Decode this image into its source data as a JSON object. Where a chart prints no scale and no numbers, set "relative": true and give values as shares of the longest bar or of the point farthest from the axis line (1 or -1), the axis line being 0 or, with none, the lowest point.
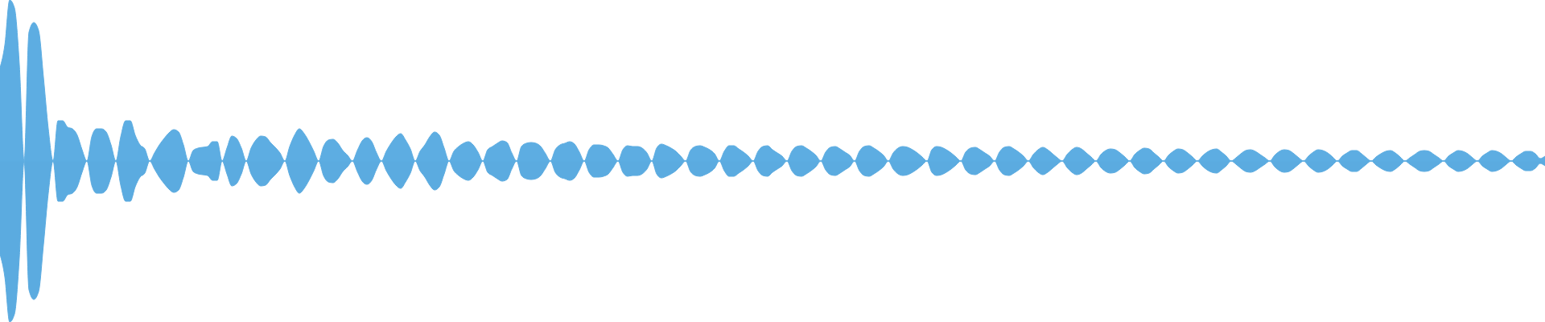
{
  "chart_data": {
    "type": "area",
    "relative": true,
    "tick_labels": false,
    "ref_lines": [
      {
        "axis": "y",
        "value": 0,
        "color": "#5dade2"
      }
    ],
    "categories": [
      null,
      null,
      null,
      null,
      null,
      null,
      null,
      null,
      null,
      null,
      null,
      null,
      null,
      null,
      null,
      null,
      null,
      null,
      null,
      null,
      null,
      null,
      null,
      null,
      null,
      null,
      null,
      null,
      null,
      null,
      null,
      null,
      null,
      null,
      null,
      null,
      null,
      null,
      null,
      null,
      null,
      null,
      null,
      null,
      null,
      null,
      null,
      null,
      null,
      null,
      null,
      null,
      null,
      null,
      null,
      null,
      null,
      null,
      null,
      null,
      null,
      null,
      null,
      null,
      null,
      null,
      null,
      null,
      null,
      null,
      null,
      null,
      null,
      null,
      null,
      null,
      null,
      null,
      null,
      null,
      null,
      null,
      null,
      null,
      null,
      null,
      null,
      null,
      null,
      null,
      null,
      null,
      null,
      null,
      null,
      null,
      null,
      null,
      null,
      null,
      null,
      null,
      null,
      null,
      null,
      null,
      null,
      null,
      null,
      null,
      null,
      null,
      null,
      null,
      null,
      null,
      null,
      null,
      null,
      null,
      null,
      null,
      null,
      null,
      null,
      null,
      null,
      null,
      null,
      null,
      null,
      null,
      null,
      null,
      null,
      null,
      null,
      null,
      null,
      null,
      null,
      null,
      null,
      null,
      null,
      null,
      null,
      null,
      null,
      null,
      null,
      null,
      null,
      null,
      null,
      null,
      null,
      null,
      null,
      null,
      null,
      null,
      null,
      null,
      null,
      null,
      null,
      null,
      null,
      null,
      null,
      null,
      null,
      null,
      null,
      null,
      null,
      null,
      null,
      null,
      null,
      null,
      null,
      null,
      null,
      null,
      null,
      null,
      null,
      null,
      null,
      null,
      null,
      null,
      null,
      null,
      null,
      null,
      null,
      null,
      null,
      null,
      null,
      null,
      null,
      null,
      null,
      null,
      null,
      null,
      null,
      null,
      null,
      null,
      null,
      null,
      null,
      null,
      null,
      null,
      null,
      null,
      null,
      null,
      null,
      null,
      null,
      null,
      null,
      null,
      null,
      null,
      null,
      null,
      null,
      null,
      null,
      null,
      null,
      null,
      null,
      null,
      null,
      null,
      null,
      null,
      null,
      null,
      null,
      null,
      null,
      null,
      null,
      null,
      null,
      null,
      null,
      null,
      null,
      null,
      null,
      null,
      null,
      null,
      null,
      null,
      null,
      null,
      null,
      null,
      null,
      null,
      null,
      null,
      null,
      null,
      null,
      null,
      null,
      null,
      null,
      null,
      null,
      null,
      null,
      null,
      null,
      null,
      null,
      null,
      null,
      null,
      null,
      null,
      null,
      null,
      null,
      null,
      null,
      null,
      null,
      null,
      null,
      null,
      null,
      null,
      null,
      null,
      null,
      null,
      null,
      null,
      null,
      null,
      null,
      null,
      null,
      null,
      null,
      null,
      null
    ],
    "series": [
      {
        "color": "#5dade2",
        "values": [
          0.58,
          0.72,
          1,
          0.95,
          0.6,
          0,
          0.8,
          0.86,
          0.81,
          0.52,
          0.2,
          0,
          0.25,
          0.25,
          0.21,
          0.2,
          0.16,
          0.07,
          0,
          0.15,
          0.2,
          0.2,
          0.18,
          0.1,
          0,
          0.15,
          0.25,
          0.25,
          0.16,
          0.1,
          0.075,
          0,
          0.05,
          0.1,
          0.14,
          0.175,
          0.195,
          0.18,
          0.1,
          0,
          0.065,
          0.08,
          0.085,
          0.09,
          0.12,
          0.12,
          0,
          0.08,
          0.155,
          0.14,
          0.08,
          0,
          0.08,
          0.13,
          0.155,
          0.15,
          0.115,
          0.085,
          0.05,
          0,
          0.09,
          0.16,
          0.2,
          0.17,
          0.12,
          0.06,
          0,
          0.09,
          0.13,
          0.135,
          0.11,
          0.065,
          0.035,
          0,
          0.065,
          0.125,
          0.145,
          0.12,
          0.05,
          0,
          0.06,
          0.11,
          0.15,
          0.17,
          0.13,
          0.075,
          0,
          0.06,
          0.1,
          0.15,
          0.18,
          0.16,
          0.08,
          0,
          0.06,
          0.09,
          0.11,
          0.12,
          0.1,
          0.055,
          0,
          0.07,
          0.09,
          0.11,
          0.125,
          0.115,
          0.05,
          0,
          0.09,
          0.11,
          0.115,
          0.11,
          0.09,
          0.045,
          0,
          0.07,
          0.1,
          0.11,
          0.12,
          0.105,
          0.055,
          0,
          0.07,
          0.1,
          0.1,
          0.095,
          0.08,
          0.04,
          0,
          0.07,
          0.095,
          0.09,
          0.09,
          0.08,
          0.05,
          0,
          0.08,
          0.105,
          0.095,
          0.08,
          0.06,
          0.03,
          0,
          0.065,
          0.09,
          0.095,
          0.085,
          0.07,
          0.045,
          0,
          0.06,
          0.095,
          0.095,
          0.075,
          0.055,
          0.03,
          0,
          0.06,
          0.09,
          0.095,
          0.07,
          0.05,
          0.03,
          0,
          0.06,
          0.09,
          0.095,
          0.08,
          0.06,
          0.035,
          0,
          0.055,
          0.085,
          0.09,
          0.075,
          0.055,
          0.035,
          0,
          0.06,
          0.09,
          0.095,
          0.08,
          0.06,
          0.035,
          0,
          0.05,
          0.08,
          0.09,
          0.085,
          0.07,
          0.05,
          0.025,
          0,
          0.07,
          0.09,
          0.085,
          0.07,
          0.05,
          0.025,
          0,
          0.055,
          0.08,
          0.085,
          0.07,
          0.05,
          0.03,
          0,
          0.055,
          0.085,
          0.09,
          0.075,
          0.055,
          0.03,
          0,
          0.04,
          0.07,
          0.085,
          0.07,
          0.045,
          0.02,
          0,
          0.04,
          0.07,
          0.085,
          0.075,
          0.05,
          0.025,
          0,
          0.04,
          0.065,
          0.075,
          0.07,
          0.05,
          0.025,
          0,
          0.04,
          0.065,
          0.08,
          0.075,
          0.05,
          0.025,
          0,
          0.035,
          0.06,
          0.075,
          0.07,
          0.05,
          0.025,
          0,
          0.03,
          0.055,
          0.07,
          0.075,
          0.055,
          0.03,
          0,
          0.02,
          0.045,
          0.065,
          0.07,
          0.06,
          0.04,
          0.02,
          0,
          0.035,
          0.06,
          0.07,
          0.065,
          0.045,
          0.02,
          0,
          0.03,
          0.055,
          0.07,
          0.065,
          0.05,
          0.025,
          0,
          0.03,
          0.05,
          0.065,
          0.065,
          0.045,
          0.02,
          0,
          0.025,
          0.045,
          0.06,
          0.065,
          0.05,
          0.025,
          0,
          0.02,
          0.04,
          0.06,
          0.065,
          0.06,
          0.04,
          0.02,
          0,
          0.03,
          0.05,
          0.065,
          0.06,
          0.045,
          0.02,
          0,
          0.03,
          0.05,
          0.065,
          0.06,
          0.045,
          0.02,
          0,
          0.025,
          0.045,
          0.06,
          0.06,
          0.045,
          0.015,
          0.03
        ]
      },
      {
        "color": "#5babe0",
        "values": [
          -0.58,
          -0.72,
          -1,
          -0.95,
          -0.6,
          0,
          -0.8,
          -0.86,
          -0.81,
          -0.52,
          -0.2,
          0,
          -0.25,
          -0.25,
          -0.21,
          -0.2,
          -0.16,
          -0.07,
          0,
          -0.15,
          -0.2,
          -0.2,
          -0.18,
          -0.1,
          0,
          -0.15,
          -0.25,
          -0.25,
          -0.16,
          -0.1,
          -0.075,
          0,
          -0.05,
          -0.1,
          -0.14,
          -0.175,
          -0.195,
          -0.18,
          -0.1,
          0,
          -0.065,
          -0.08,
          -0.085,
          -0.09,
          -0.12,
          -0.12,
          0,
          -0.08,
          -0.155,
          -0.14,
          -0.08,
          0,
          -0.08,
          -0.13,
          -0.155,
          -0.15,
          -0.115,
          -0.085,
          -0.05,
          0,
          -0.09,
          -0.16,
          -0.2,
          -0.17,
          -0.12,
          -0.06,
          0,
          -0.09,
          -0.13,
          -0.135,
          -0.11,
          -0.065,
          -0.035,
          0,
          -0.065,
          -0.125,
          -0.145,
          -0.12,
          -0.05,
          0,
          -0.06,
          -0.11,
          -0.15,
          -0.17,
          -0.13,
          -0.075,
          0,
          -0.06,
          -0.1,
          -0.15,
          -0.18,
          -0.16,
          -0.08,
          0,
          -0.06,
          -0.09,
          -0.11,
          -0.12,
          -0.1,
          -0.055,
          0,
          -0.07,
          -0.09,
          -0.11,
          -0.125,
          -0.115,
          -0.05,
          0,
          -0.09,
          -0.11,
          -0.115,
          -0.11,
          -0.09,
          -0.045,
          0,
          -0.07,
          -0.1,
          -0.11,
          -0.12,
          -0.105,
          -0.055,
          0,
          -0.07,
          -0.1,
          -0.1,
          -0.095,
          -0.08,
          -0.04,
          0,
          -0.07,
          -0.095,
          -0.09,
          -0.09,
          -0.08,
          -0.05,
          0,
          -0.08,
          -0.105,
          -0.095,
          -0.08,
          -0.06,
          -0.03,
          0,
          -0.065,
          -0.09,
          -0.095,
          -0.085,
          -0.07,
          -0.045,
          0,
          -0.06,
          -0.095,
          -0.095,
          -0.075,
          -0.055,
          -0.03,
          0,
          -0.06,
          -0.09,
          -0.095,
          -0.07,
          -0.05,
          -0.03,
          0,
          -0.06,
          -0.09,
          -0.095,
          -0.08,
          -0.06,
          -0.035,
          0,
          -0.055,
          -0.085,
          -0.09,
          -0.075,
          -0.055,
          -0.035,
          0,
          -0.06,
          -0.09,
          -0.095,
          -0.08,
          -0.06,
          -0.035,
          0,
          -0.05,
          -0.08,
          -0.09,
          -0.085,
          -0.07,
          -0.05,
          -0.025,
          0,
          -0.07,
          -0.09,
          -0.085,
          -0.07,
          -0.05,
          -0.025,
          0,
          -0.055,
          -0.08,
          -0.085,
          -0.07,
          -0.05,
          -0.03,
          0,
          -0.055,
          -0.085,
          -0.09,
          -0.075,
          -0.055,
          -0.03,
          0,
          -0.04,
          -0.07,
          -0.085,
          -0.07,
          -0.045,
          -0.02,
          0,
          -0.04,
          -0.07,
          -0.085,
          -0.075,
          -0.05,
          -0.025,
          0,
          -0.04,
          -0.065,
          -0.075,
          -0.07,
          -0.05,
          -0.025,
          0,
          -0.04,
          -0.065,
          -0.08,
          -0.075,
          -0.05,
          -0.025,
          0,
          -0.035,
          -0.06,
          -0.075,
          -0.07,
          -0.05,
          -0.025,
          0,
          -0.03,
          -0.055,
          -0.07,
          -0.075,
          -0.055,
          -0.03,
          0,
          -0.02,
          -0.045,
          -0.065,
          -0.07,
          -0.06,
          -0.04,
          -0.02,
          0,
          -0.035,
          -0.06,
          -0.07,
          -0.065,
          -0.045,
          -0.02,
          0,
          -0.03,
          -0.055,
          -0.07,
          -0.065,
          -0.05,
          -0.025,
          0,
          -0.03,
          -0.05,
          -0.065,
          -0.065,
          -0.045,
          -0.02,
          0,
          -0.025,
          -0.045,
          -0.06,
          -0.065,
          -0.05,
          -0.025,
          0,
          -0.02,
          -0.04,
          -0.06,
          -0.065,
          -0.06,
          -0.04,
          -0.02,
          0,
          -0.03,
          -0.05,
          -0.065,
          -0.06,
          -0.045,
          -0.02,
          0,
          -0.03,
          -0.05,
          -0.065,
          -0.06,
          -0.045,
          -0.02,
          0,
          -0.025,
          -0.045,
          -0.06,
          -0.06,
          -0.045,
          -0.015,
          -0.03
        ]
      }
    ]
  }
}
